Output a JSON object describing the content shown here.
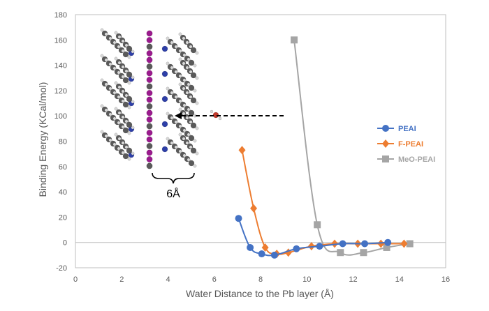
{
  "chart_data": {
    "type": "line",
    "xlabel": "Water Distance to the Pb layer (Å)",
    "ylabel": "Binding Energy (KCal/mol)",
    "xlim": [
      0,
      16
    ],
    "ylim": [
      -20,
      180
    ],
    "xticks": [
      0,
      2,
      4,
      6,
      8,
      10,
      12,
      14,
      16
    ],
    "yticks": [
      -20,
      0,
      20,
      40,
      60,
      80,
      100,
      120,
      140,
      160,
      180
    ],
    "xtick_labels": [
      "0",
      "2",
      "4",
      "6",
      "8",
      "10",
      "12",
      "14",
      "16"
    ],
    "ytick_labels": [
      "-20",
      "0",
      "20",
      "40",
      "60",
      "80",
      "100",
      "120",
      "140",
      "160",
      "180"
    ],
    "legend_position": "right",
    "series": [
      {
        "name": "PEAI",
        "color": "#4472C4",
        "marker": "circle",
        "points": [
          [
            7.05,
            19
          ],
          [
            7.55,
            -4
          ],
          [
            8.05,
            -9
          ],
          [
            8.6,
            -10
          ],
          [
            9.55,
            -5
          ],
          [
            10.55,
            -3
          ],
          [
            11.55,
            -1
          ],
          [
            12.5,
            -1
          ],
          [
            13.5,
            0
          ]
        ]
      },
      {
        "name": "F-PEAI",
        "color": "#ED7D31",
        "marker": "diamond",
        "points": [
          [
            7.2,
            73
          ],
          [
            7.7,
            27
          ],
          [
            8.2,
            -4
          ],
          [
            8.7,
            -9
          ],
          [
            9.2,
            -8
          ],
          [
            10.2,
            -3
          ],
          [
            11.2,
            -1
          ],
          [
            12.2,
            -1
          ],
          [
            13.2,
            -1
          ],
          [
            14.2,
            -1
          ]
        ]
      },
      {
        "name": "MeO-PEAI",
        "color": "#A5A5A5",
        "marker": "square",
        "points": [
          [
            9.45,
            160
          ],
          [
            10.45,
            14
          ],
          [
            11.45,
            -8
          ],
          [
            12.45,
            -8
          ],
          [
            13.45,
            -4
          ],
          [
            14.45,
            -1
          ]
        ]
      }
    ]
  },
  "inset": {
    "scale_label": "6Å",
    "arrow_color": "#000000",
    "molecule_colors": {
      "lead": "#9B1B8E",
      "carbon": "#5A5A5A",
      "hydrogen": "#D8D8D8",
      "nitrogen": "#2E3FA8",
      "water": "#C0392B"
    }
  }
}
